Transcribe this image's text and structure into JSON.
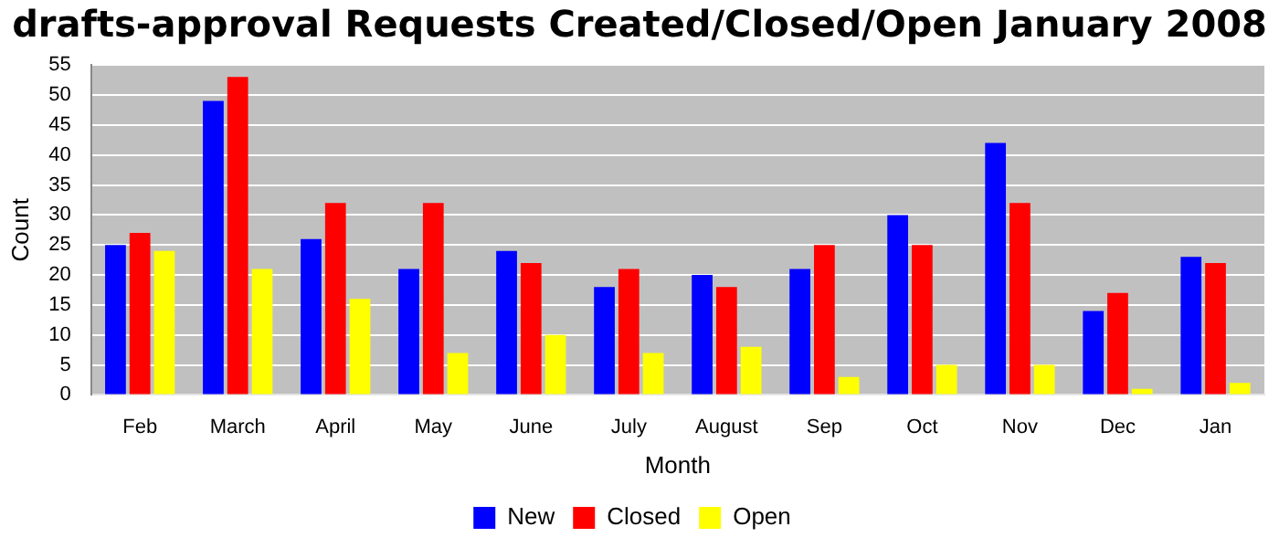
{
  "chart_data": {
    "type": "bar",
    "title": "drafts-approval Requests Created/Closed/Open January 2008",
    "xlabel": "Month",
    "ylabel": "Count",
    "categories": [
      "Feb",
      "March",
      "April",
      "May",
      "June",
      "July",
      "August",
      "Sep",
      "Oct",
      "Nov",
      "Dec",
      "Jan"
    ],
    "series": [
      {
        "name": "New",
        "color": "#0000ff",
        "values": [
          25,
          49,
          26,
          21,
          24,
          18,
          20,
          21,
          30,
          42,
          14,
          23
        ]
      },
      {
        "name": "Closed",
        "color": "#ff0000",
        "values": [
          27,
          53,
          32,
          32,
          22,
          21,
          18,
          25,
          25,
          32,
          17,
          22
        ]
      },
      {
        "name": "Open",
        "color": "#ffff00",
        "values": [
          24,
          21,
          16,
          7,
          10,
          7,
          8,
          3,
          5,
          5,
          1,
          2
        ]
      }
    ],
    "ylim": [
      0,
      55
    ],
    "yticks": [
      0,
      5,
      10,
      15,
      20,
      25,
      30,
      35,
      40,
      45,
      50,
      55
    ],
    "grid": "y",
    "legend": "bottom"
  }
}
